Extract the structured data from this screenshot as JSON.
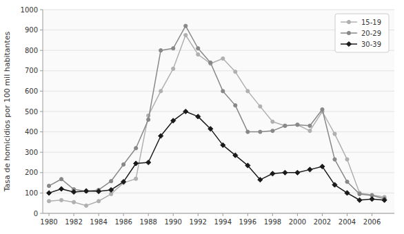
{
  "chart_data": {
    "type": "line",
    "y_label": "Tasa de homicidios por 100 mil habitantes",
    "x": [
      1980,
      1981,
      1982,
      1983,
      1984,
      1985,
      1986,
      1987,
      1988,
      1989,
      1990,
      1991,
      1992,
      1993,
      1994,
      1995,
      1996,
      1997,
      1998,
      1999,
      2000,
      2001,
      2002,
      2003,
      2004,
      2005,
      2006,
      2007
    ],
    "series": [
      {
        "name": "15-19",
        "color": "#b0b0b0",
        "marker": "circle",
        "values": [
          60,
          65,
          55,
          38,
          60,
          95,
          150,
          170,
          480,
          600,
          710,
          875,
          780,
          735,
          760,
          695,
          600,
          525,
          450,
          430,
          435,
          405,
          500,
          390,
          265,
          100,
          90,
          80
        ]
      },
      {
        "name": "20-29",
        "color": "#888888",
        "marker": "circle",
        "values": [
          135,
          168,
          118,
          108,
          115,
          158,
          240,
          320,
          460,
          800,
          810,
          920,
          810,
          740,
          600,
          530,
          400,
          400,
          405,
          430,
          435,
          430,
          510,
          265,
          155,
          95,
          88,
          72
        ]
      },
      {
        "name": "30-39",
        "color": "#1a1a1a",
        "marker": "diamond",
        "values": [
          100,
          120,
          105,
          110,
          108,
          115,
          155,
          245,
          250,
          380,
          455,
          500,
          475,
          415,
          335,
          285,
          235,
          165,
          195,
          200,
          200,
          215,
          230,
          140,
          100,
          65,
          70,
          65
        ]
      }
    ],
    "xlim": [
      1979.5,
      2007.8
    ],
    "xticks": [
      1980,
      1982,
      1984,
      1986,
      1988,
      1990,
      1992,
      1994,
      1996,
      1998,
      2000,
      2002,
      2004,
      2006
    ],
    "ylim": [
      0,
      1000
    ],
    "yticks": [
      0,
      100,
      200,
      300,
      400,
      500,
      600,
      700,
      800,
      900,
      1000
    ],
    "grid": true,
    "legend": "upper right"
  }
}
